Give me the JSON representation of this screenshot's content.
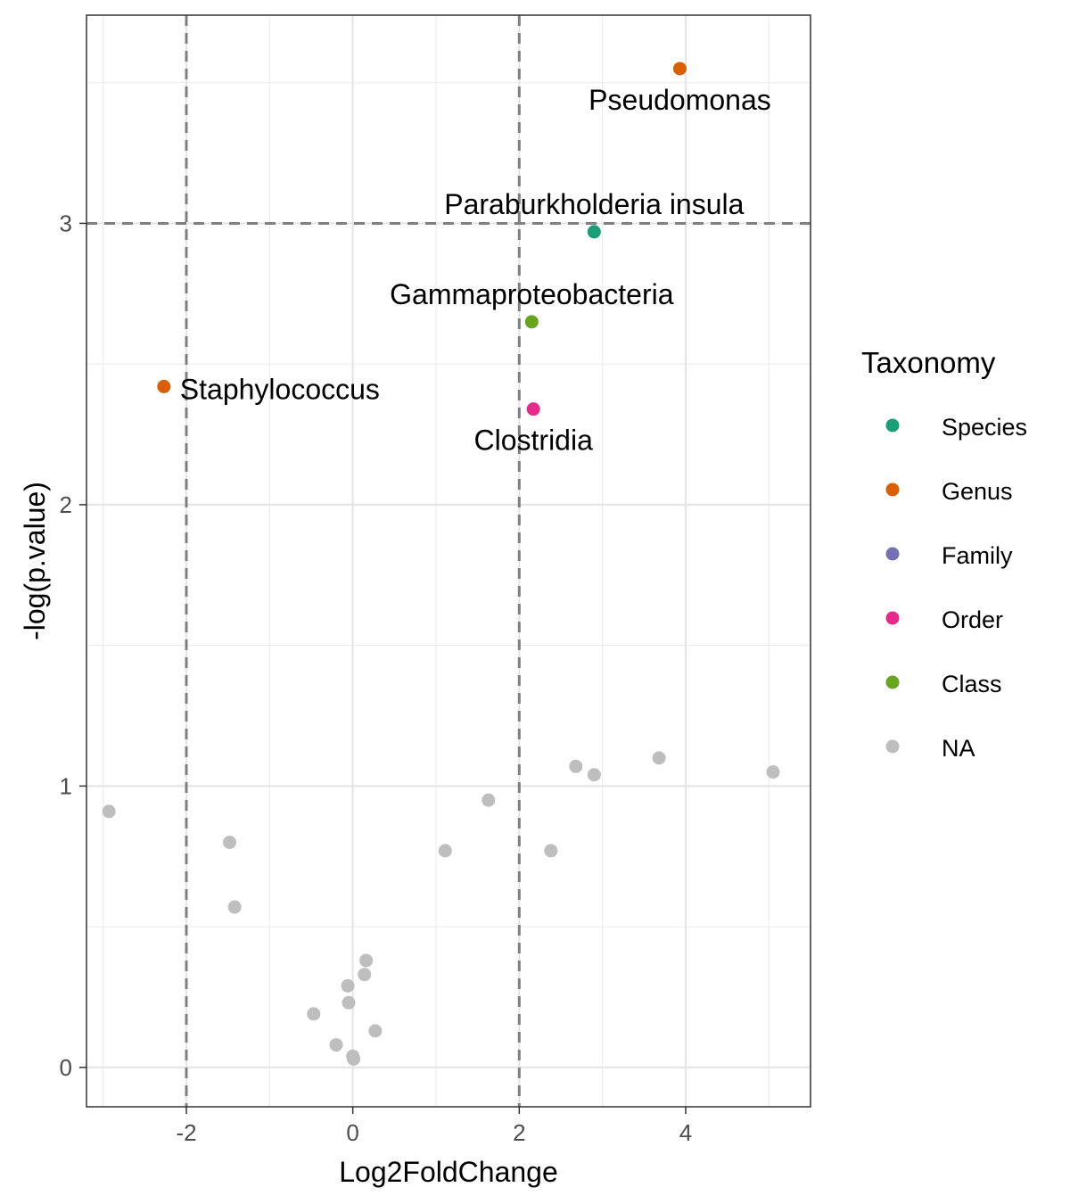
{
  "chart_data": {
    "type": "scatter",
    "title": "",
    "xlabel": "Log2FoldChange",
    "ylabel": "-log(p.value)",
    "xlim": [
      -3.2,
      5.5
    ],
    "ylim": [
      -0.14,
      3.74
    ],
    "x_ticks": [
      -2,
      0,
      2,
      4
    ],
    "x_tick_labels": [
      "-2",
      "0",
      "2",
      "4"
    ],
    "y_ticks": [
      0,
      1,
      2,
      3
    ],
    "y_tick_labels": [
      "0",
      "1",
      "2",
      "3"
    ],
    "grid": true,
    "thresholds": {
      "vertical": [
        -2,
        2
      ],
      "horizontal": [
        3
      ]
    },
    "legend": {
      "title": "Taxonomy",
      "placement": "right",
      "items": [
        {
          "label": "Species",
          "color": "#1B9E77"
        },
        {
          "label": "Genus",
          "color": "#D95F02"
        },
        {
          "label": "Family",
          "color": "#7570B3"
        },
        {
          "label": "Order",
          "color": "#E7298A"
        },
        {
          "label": "Class",
          "color": "#66A61E"
        },
        {
          "label": "NA",
          "color": "#BEBEBE"
        }
      ]
    },
    "points": [
      {
        "x": 3.93,
        "y": 3.55,
        "group": "Genus",
        "label": "Pseudomonas",
        "label_pos": "below"
      },
      {
        "x": 2.9,
        "y": 2.97,
        "group": "Species",
        "label": "Paraburkholderia insula",
        "label_pos": "above"
      },
      {
        "x": 2.15,
        "y": 2.65,
        "group": "Class",
        "label": "Gammaproteobacteria",
        "label_pos": "above"
      },
      {
        "x": -2.27,
        "y": 2.42,
        "group": "Genus",
        "label": "Staphylococcus",
        "label_pos": "right"
      },
      {
        "x": 2.17,
        "y": 2.34,
        "group": "Order",
        "label": "Clostridia",
        "label_pos": "below"
      },
      {
        "x": -2.93,
        "y": 0.91,
        "group": "NA"
      },
      {
        "x": -1.48,
        "y": 0.8,
        "group": "NA"
      },
      {
        "x": -1.42,
        "y": 0.57,
        "group": "NA"
      },
      {
        "x": -0.47,
        "y": 0.19,
        "group": "NA"
      },
      {
        "x": -0.2,
        "y": 0.08,
        "group": "NA"
      },
      {
        "x": -0.06,
        "y": 0.29,
        "group": "NA"
      },
      {
        "x": -0.05,
        "y": 0.23,
        "group": "NA"
      },
      {
        "x": 0.0,
        "y": 0.04,
        "group": "NA"
      },
      {
        "x": 0.01,
        "y": 0.03,
        "group": "NA"
      },
      {
        "x": 0.14,
        "y": 0.33,
        "group": "NA"
      },
      {
        "x": 0.16,
        "y": 0.38,
        "group": "NA"
      },
      {
        "x": 0.27,
        "y": 0.13,
        "group": "NA"
      },
      {
        "x": 1.11,
        "y": 0.77,
        "group": "NA"
      },
      {
        "x": 1.63,
        "y": 0.95,
        "group": "NA"
      },
      {
        "x": 2.38,
        "y": 0.77,
        "group": "NA"
      },
      {
        "x": 2.68,
        "y": 1.07,
        "group": "NA"
      },
      {
        "x": 2.9,
        "y": 1.04,
        "group": "NA"
      },
      {
        "x": 3.68,
        "y": 1.1,
        "group": "NA"
      },
      {
        "x": 5.05,
        "y": 1.05,
        "group": "NA"
      }
    ]
  }
}
